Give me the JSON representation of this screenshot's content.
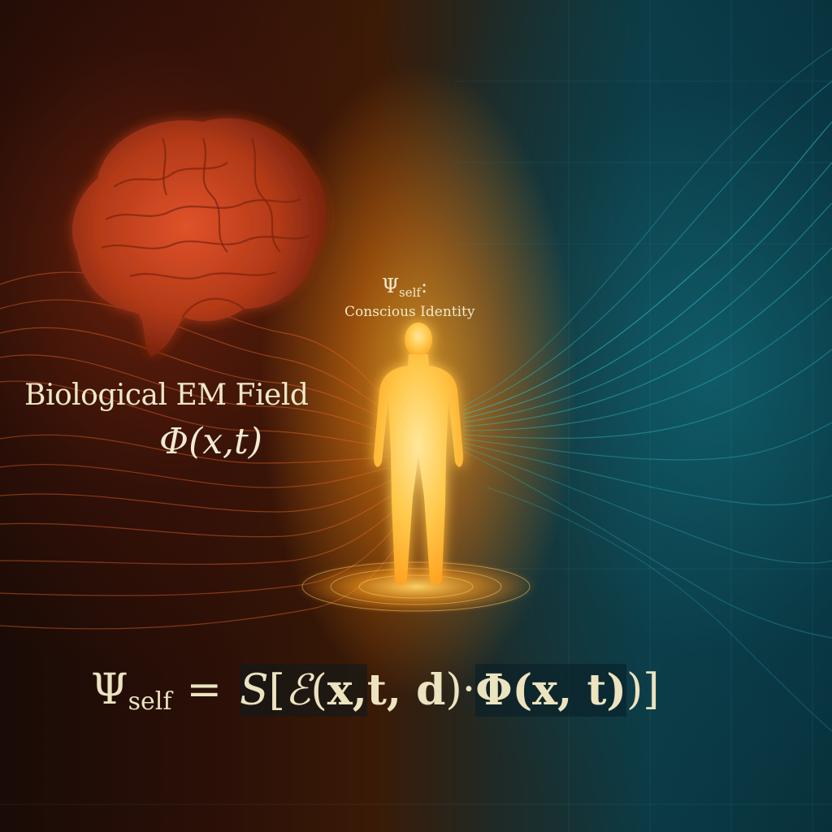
{
  "scene": {
    "field_label": "Biological EM Field",
    "field_symbol": "Φ(x,t)",
    "identity_symbol": "Ψ",
    "identity_subscript": "self",
    "identity_colon": ":",
    "identity_caption": "Conscious Identity"
  },
  "equation": {
    "lhs": "Ψ",
    "lhs_subscript": "self",
    "equals": "=",
    "operator_s": "S",
    "bracket_open": "[",
    "operator_e": "ℰ",
    "paren_open": "(",
    "args_1": "x, ",
    "args_2": "t, d",
    "paren_close": ")",
    "dot": " · ",
    "phi_term": "Φ(x, t)",
    "bracket_close": ")]"
  },
  "colors": {
    "warm_glow": "#ffb428",
    "brain_red": "#d9431a",
    "teal_wave": "#2fb9c7",
    "text_cream": "#efe7c8"
  },
  "icons": [
    "brain-illustration",
    "human-figure-silhouette"
  ]
}
